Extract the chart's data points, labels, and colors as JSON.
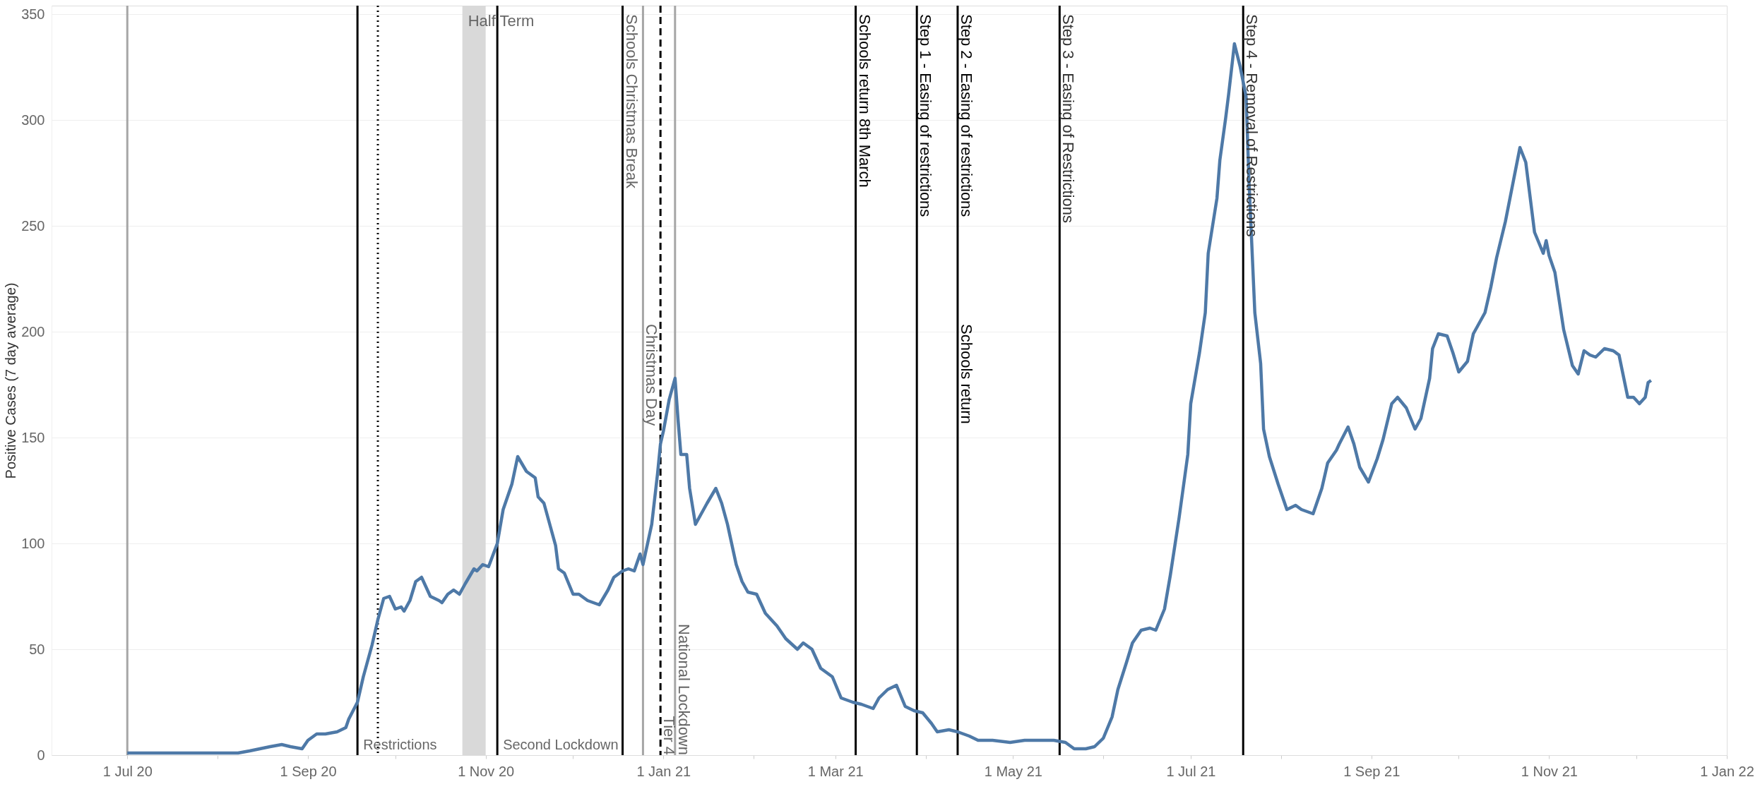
{
  "chart_data": {
    "type": "line",
    "ylabel": "Positive Cases (7 day average)",
    "xlim": [
      "2020-06-05",
      "2022-01-01"
    ],
    "ylim": [
      0,
      354
    ],
    "yticks": [
      0,
      50,
      100,
      150,
      200,
      250,
      300,
      350
    ],
    "xticks": [
      {
        "value": "2020-07-01",
        "label": "1 Jul 20"
      },
      {
        "value": "2020-08-01",
        "label": null
      },
      {
        "value": "2020-09-01",
        "label": "1 Sep 20"
      },
      {
        "value": "2020-10-01",
        "label": null
      },
      {
        "value": "2020-11-01",
        "label": "1 Nov 20"
      },
      {
        "value": "2020-12-01",
        "label": null
      },
      {
        "value": "2021-01-01",
        "label": "1 Jan 21"
      },
      {
        "value": "2021-02-01",
        "label": null
      },
      {
        "value": "2021-03-01",
        "label": "1 Mar 21"
      },
      {
        "value": "2021-04-01",
        "label": null
      },
      {
        "value": "2021-05-01",
        "label": "1 May 21"
      },
      {
        "value": "2021-06-01",
        "label": null
      },
      {
        "value": "2021-07-01",
        "label": "1 Jul 21"
      },
      {
        "value": "2021-08-01",
        "label": null
      },
      {
        "value": "2021-09-01",
        "label": "1 Sep 21"
      },
      {
        "value": "2021-10-01",
        "label": null
      },
      {
        "value": "2021-11-01",
        "label": "1 Nov 21"
      },
      {
        "value": "2021-12-01",
        "label": null
      },
      {
        "value": "2022-01-01",
        "label": "1 Jan 22"
      }
    ],
    "grid": "y",
    "line_style": "solid",
    "marker": "none",
    "x": [
      "2020-07-01",
      "2020-07-28",
      "2020-08-08",
      "2020-08-12",
      "2020-08-19",
      "2020-08-23",
      "2020-08-26",
      "2020-08-30",
      "2020-09-01",
      "2020-09-04",
      "2020-09-07",
      "2020-09-11",
      "2020-09-14",
      "2020-09-15",
      "2020-09-18",
      "2020-09-20",
      "2020-09-23",
      "2020-09-25",
      "2020-09-27",
      "2020-09-29",
      "2020-10-01",
      "2020-10-03",
      "2020-10-04",
      "2020-10-06",
      "2020-10-08",
      "2020-10-10",
      "2020-10-11",
      "2020-10-13",
      "2020-10-16",
      "2020-10-17",
      "2020-10-19",
      "2020-10-21",
      "2020-10-23",
      "2020-10-25",
      "2020-10-28",
      "2020-10-29",
      "2020-10-31",
      "2020-11-02",
      "2020-11-05",
      "2020-11-07",
      "2020-11-10",
      "2020-11-12",
      "2020-11-15",
      "2020-11-18",
      "2020-11-19",
      "2020-11-21",
      "2020-11-23",
      "2020-11-25",
      "2020-11-26",
      "2020-11-28",
      "2020-12-01",
      "2020-12-03",
      "2020-12-06",
      "2020-12-08",
      "2020-12-10",
      "2020-12-13",
      "2020-12-15",
      "2020-12-18",
      "2020-12-20",
      "2020-12-22",
      "2020-12-24",
      "2020-12-25",
      "2020-12-28",
      "2020-12-30",
      "2020-12-31",
      "2021-01-01",
      "2021-01-03",
      "2021-01-05",
      "2021-01-06",
      "2021-01-07",
      "2021-01-09",
      "2021-01-10",
      "2021-01-12",
      "2021-01-14",
      "2021-01-16",
      "2021-01-19",
      "2021-01-21",
      "2021-01-23",
      "2021-01-26",
      "2021-01-28",
      "2021-01-30",
      "2021-02-02",
      "2021-02-05",
      "2021-02-09",
      "2021-02-12",
      "2021-02-16",
      "2021-02-18",
      "2021-02-21",
      "2021-02-24",
      "2021-02-28",
      "2021-03-03",
      "2021-03-07",
      "2021-03-10",
      "2021-03-14",
      "2021-03-16",
      "2021-03-19",
      "2021-03-22",
      "2021-03-25",
      "2021-03-28",
      "2021-03-31",
      "2021-04-03",
      "2021-04-05",
      "2021-04-09",
      "2021-04-12",
      "2021-04-16",
      "2021-04-19",
      "2021-04-24",
      "2021-04-30",
      "2021-05-05",
      "2021-05-10",
      "2021-05-15",
      "2021-05-19",
      "2021-05-22",
      "2021-05-26",
      "2021-05-29",
      "2021-06-01",
      "2021-06-04",
      "2021-06-06",
      "2021-06-09",
      "2021-06-11",
      "2021-06-14",
      "2021-06-17",
      "2021-06-19",
      "2021-06-22",
      "2021-06-24",
      "2021-06-27",
      "2021-06-30",
      "2021-07-01",
      "2021-07-04",
      "2021-07-06",
      "2021-07-07",
      "2021-07-10",
      "2021-07-11",
      "2021-07-13",
      "2021-07-14",
      "2021-07-16",
      "2021-07-18",
      "2021-07-20",
      "2021-07-21",
      "2021-07-23",
      "2021-07-25",
      "2021-07-26",
      "2021-07-28",
      "2021-07-31",
      "2021-08-03",
      "2021-08-06",
      "2021-08-08",
      "2021-08-12",
      "2021-08-15",
      "2021-08-17",
      "2021-08-20",
      "2021-08-21",
      "2021-08-24",
      "2021-08-26",
      "2021-08-28",
      "2021-08-31",
      "2021-09-03",
      "2021-09-05",
      "2021-09-08",
      "2021-09-10",
      "2021-09-13",
      "2021-09-16",
      "2021-09-18",
      "2021-09-21",
      "2021-09-22",
      "2021-09-24",
      "2021-09-27",
      "2021-09-29",
      "2021-10-01",
      "2021-10-04",
      "2021-10-06",
      "2021-10-10",
      "2021-10-12",
      "2021-10-14",
      "2021-10-17",
      "2021-10-20",
      "2021-10-22",
      "2021-10-24",
      "2021-10-27",
      "2021-10-30",
      "2021-10-31",
      "2021-11-01",
      "2021-11-03",
      "2021-11-06",
      "2021-11-09",
      "2021-11-11",
      "2021-11-13",
      "2021-11-15",
      "2021-11-17",
      "2021-11-20",
      "2021-11-23",
      "2021-11-25",
      "2021-11-28",
      "2021-11-30",
      "2021-12-02",
      "2021-12-04",
      "2021-12-05",
      "2021-12-06"
    ],
    "series": [
      {
        "color": "#4e79a7",
        "values": [
          1,
          1,
          1,
          2,
          4,
          5,
          4,
          3,
          7,
          10,
          10,
          11,
          13,
          17,
          25,
          37,
          52,
          64,
          74,
          75,
          69,
          70,
          68,
          73,
          82,
          84,
          81,
          75,
          73,
          72,
          76,
          78,
          76,
          81,
          88,
          87,
          90,
          89,
          100,
          116,
          128,
          141,
          134,
          131,
          122,
          119,
          109,
          99,
          88,
          86,
          76,
          76,
          73,
          72,
          71,
          78,
          84,
          87,
          88,
          87,
          95,
          90,
          109,
          133,
          147,
          153,
          168,
          178,
          159,
          142,
          142,
          126,
          109,
          114,
          119,
          126,
          119,
          109,
          90,
          82,
          77,
          76,
          67,
          61,
          55,
          50,
          53,
          50,
          41,
          37,
          27,
          25,
          24,
          22,
          27,
          31,
          33,
          23,
          21,
          20,
          15,
          11,
          12,
          11,
          9,
          7,
          7,
          6,
          7,
          7,
          7,
          6,
          3,
          3,
          4,
          8,
          18,
          31,
          44,
          53,
          59,
          60,
          59,
          69,
          85,
          112,
          142,
          166,
          190,
          209,
          237,
          263,
          281,
          301,
          312,
          336,
          325,
          311,
          271,
          209,
          185,
          154,
          141,
          128,
          116,
          118,
          116,
          114,
          126,
          138,
          144,
          147,
          155,
          147,
          136,
          129,
          140,
          149,
          166,
          169,
          164,
          154,
          159,
          178,
          192,
          199,
          198,
          190,
          181,
          186,
          199,
          209,
          221,
          235,
          252,
          273,
          287,
          280,
          247,
          237,
          243,
          236,
          228,
          201,
          184,
          180,
          191,
          189,
          188,
          192,
          191,
          189,
          169,
          169,
          166,
          169,
          176,
          177
        ]
      }
    ],
    "bands": [
      {
        "axis": "x",
        "from": "2020-10-24",
        "to": "2020-11-01",
        "label": "Half Term",
        "color": "#d9d9d9"
      }
    ],
    "ref_lines": [
      {
        "axis": "x",
        "value": "2020-07-01",
        "color": "#a6a6a6",
        "line_style": "solid"
      },
      {
        "axis": "x",
        "value": "2020-09-18",
        "label": "Restrictions",
        "color": "#000000",
        "line_style": "solid"
      },
      {
        "axis": "x",
        "value": "2020-09-25",
        "color": "#000000",
        "line_style": "dotted"
      },
      {
        "axis": "x",
        "value": "2020-11-05",
        "label": "Second Lockdown",
        "color": "#000000",
        "line_style": "solid"
      },
      {
        "axis": "x",
        "value": "2020-12-18",
        "label": "Schools Christmas Break",
        "color": "#000000",
        "line_style": "solid"
      },
      {
        "axis": "x",
        "value": "2020-12-25",
        "label": "Christmas Day",
        "color": "#a6a6a6",
        "line_style": "solid"
      },
      {
        "axis": "x",
        "value": "2020-12-31",
        "label": "Tier 4",
        "color": "#000000",
        "line_style": "dashed"
      },
      {
        "axis": "x",
        "value": "2021-01-05",
        "label": "National Lockdown",
        "color": "#a6a6a6",
        "line_style": "solid"
      },
      {
        "axis": "x",
        "value": "2021-03-08",
        "label": "Schools return 8th March",
        "color": "#000000",
        "line_style": "solid"
      },
      {
        "axis": "x",
        "value": "2021-03-29",
        "label": "Step 1 - Easing of restrictions",
        "color": "#000000",
        "line_style": "solid"
      },
      {
        "axis": "x",
        "value": "2021-04-12",
        "label": "Step 2 - Easing of restrictions",
        "color": "#000000",
        "line_style": "solid"
      },
      {
        "axis": "x",
        "value": "2021-05-17",
        "label": "Step 3 - Easing of Restrictions",
        "color": "#000000",
        "line_style": "solid"
      },
      {
        "axis": "x",
        "value": "2021-07-19",
        "label": "Step 4 - Removal of Restrictions",
        "color": "#000000",
        "line_style": "solid"
      }
    ],
    "annotations": [
      {
        "text": "Schools return",
        "x": "2021-04-12",
        "y": 205
      }
    ]
  }
}
